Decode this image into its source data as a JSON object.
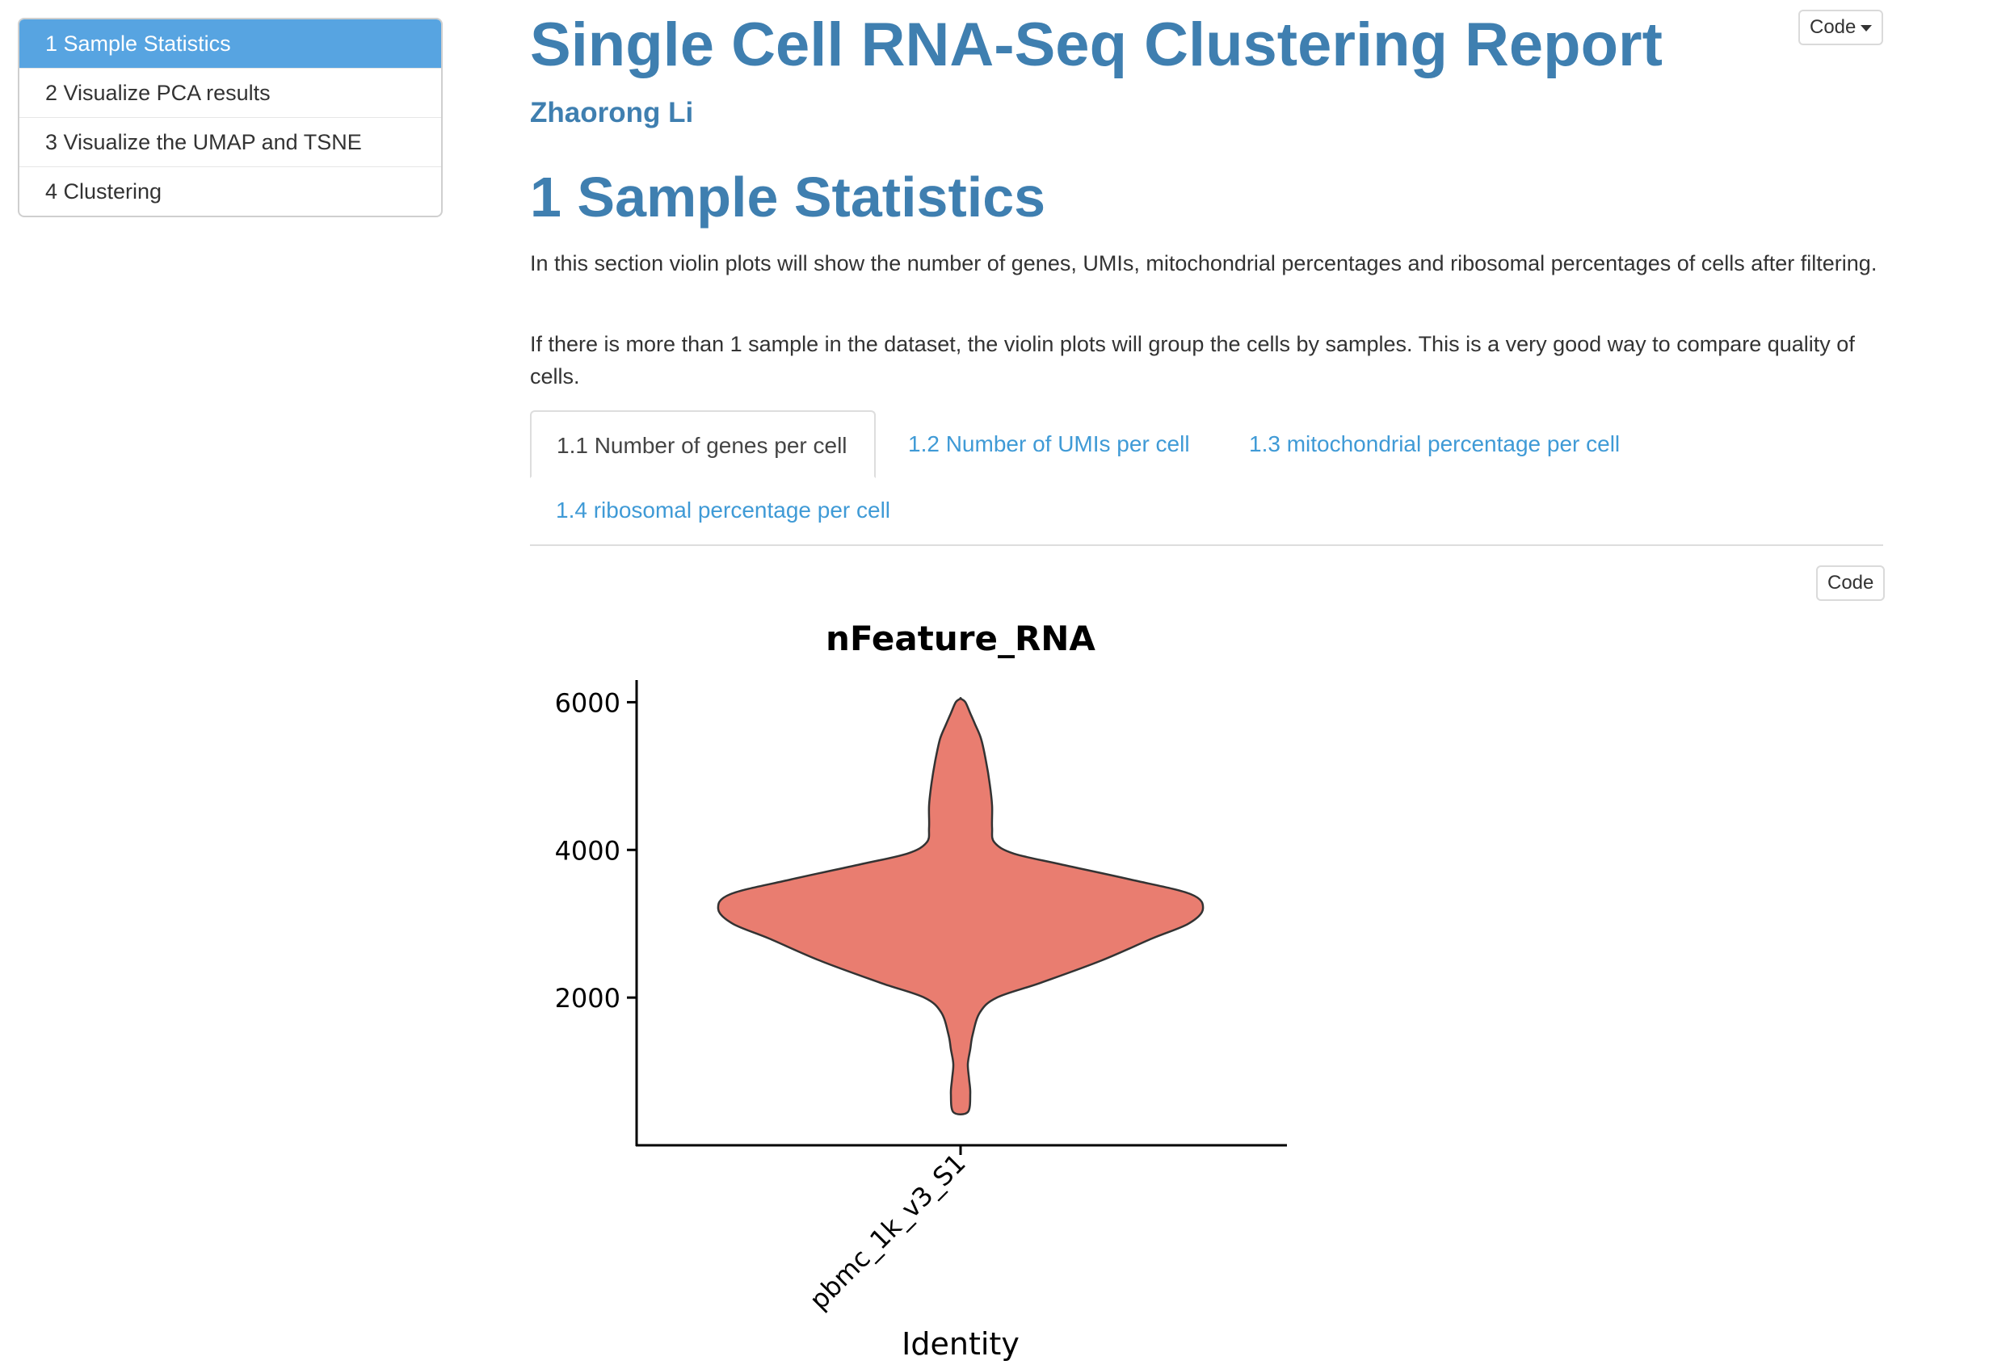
{
  "toc": {
    "items": [
      {
        "label": "1 Sample Statistics"
      },
      {
        "label": "2 Visualize PCA results"
      },
      {
        "label": "3 Visualize the UMAP and TSNE"
      },
      {
        "label": "4 Clustering"
      }
    ]
  },
  "header": {
    "code_label": "Code",
    "title": "Single Cell RNA-Seq Clustering Report",
    "author": "Zhaorong Li"
  },
  "section": {
    "title": "1 Sample Statistics",
    "para1": "In this section violin plots will show the number of genes, UMIs, mitochondrial percentages and ribosomal percentages of cells after filtering.",
    "para2": "If there is more than 1 sample in the dataset, the violin plots will group the cells by samples. This is a very good way to compare quality of cells.",
    "tabs": [
      {
        "label": "1.1 Number of genes per cell"
      },
      {
        "label": "1.2 Number of UMIs per cell"
      },
      {
        "label": "1.3 mitochondrial percentage per cell"
      },
      {
        "label": "1.4 ribosomal percentage per cell"
      }
    ],
    "code_label": "Code"
  },
  "colors": {
    "accent": "#3f7fb0",
    "link": "#3f9ad6",
    "toc_active": "#57a4e1",
    "violin_fill": "#e97d70"
  },
  "chart_data": {
    "type": "violin",
    "title": "nFeature_RNA",
    "xlabel": "Identity",
    "ylabel": "",
    "categories": [
      "pbmc_1k_v3_S1"
    ],
    "ylim": [
      0,
      6300
    ],
    "yticks": [
      2000,
      4000,
      6000
    ],
    "y_min": 450,
    "y_max": 6050,
    "density_profile": [
      [
        450,
        0.03
      ],
      [
        700,
        0.04
      ],
      [
        900,
        0.035
      ],
      [
        1100,
        0.03
      ],
      [
        1300,
        0.04
      ],
      [
        1500,
        0.05
      ],
      [
        1800,
        0.08
      ],
      [
        2000,
        0.15
      ],
      [
        2200,
        0.33
      ],
      [
        2500,
        0.58
      ],
      [
        2800,
        0.79
      ],
      [
        3000,
        0.94
      ],
      [
        3200,
        1.0
      ],
      [
        3400,
        0.95
      ],
      [
        3600,
        0.7
      ],
      [
        3800,
        0.42
      ],
      [
        3950,
        0.22
      ],
      [
        4100,
        0.14
      ],
      [
        4300,
        0.13
      ],
      [
        4600,
        0.13
      ],
      [
        4900,
        0.12
      ],
      [
        5200,
        0.105
      ],
      [
        5500,
        0.085
      ],
      [
        5700,
        0.06
      ],
      [
        5850,
        0.04
      ],
      [
        6000,
        0.02
      ],
      [
        6050,
        0.0
      ]
    ]
  }
}
